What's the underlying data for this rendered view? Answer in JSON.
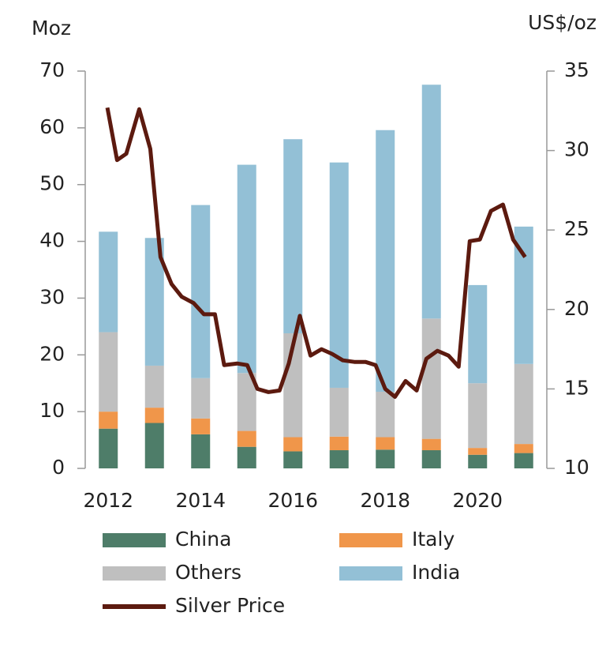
{
  "chart_data": {
    "type": "bar",
    "y_label": "Moz",
    "y2_label": "US$/oz",
    "x": [
      2012,
      2013,
      2014,
      2015,
      2016,
      2017,
      2018,
      2019,
      2020,
      2021
    ],
    "xlim": [
      2011.5,
      2021.5
    ],
    "xticks": [
      2012,
      2014,
      2016,
      2018,
      2020
    ],
    "ylim": [
      0,
      70
    ],
    "yticks": [
      0,
      10,
      20,
      30,
      40,
      50,
      60,
      70
    ],
    "y2lim": [
      10,
      35
    ],
    "y2ticks": [
      10,
      15,
      20,
      25,
      30,
      35
    ],
    "series": [
      {
        "name": "China",
        "color": "#4e7d69",
        "values": [
          7,
          8,
          6,
          3.8,
          3,
          3.2,
          3.3,
          3.2,
          2.4,
          2.7
        ]
      },
      {
        "name": "Italy",
        "color": "#f0964a",
        "values": [
          3,
          2.7,
          2.8,
          2.8,
          2.5,
          2.4,
          2.2,
          2,
          1.2,
          1.6
        ]
      },
      {
        "name": "Others",
        "color": "#bfbfbf",
        "values": [
          14,
          7.4,
          7.1,
          10.2,
          18.3,
          8.6,
          8,
          21.2,
          11.4,
          14.1
        ]
      },
      {
        "name": "India",
        "color": "#93c0d6",
        "values": [
          17.7,
          22.5,
          30.5,
          36.7,
          34.2,
          39.7,
          46.1,
          41.2,
          17.3,
          24.2
        ]
      },
      {
        "name": "Silver Price",
        "type": "line",
        "axis": "y2",
        "color": "#5c1a0f",
        "x": [
          2011.98,
          2012.19,
          2012.39,
          2012.67,
          2012.91,
          2013.13,
          2013.37,
          2013.59,
          2013.85,
          2014.07,
          2014.31,
          2014.51,
          2014.79,
          2015.01,
          2015.23,
          2015.47,
          2015.71,
          2015.91,
          2016.15,
          2016.38,
          2016.62,
          2016.85,
          2017.08,
          2017.33,
          2017.57,
          2017.79,
          2018.0,
          2018.21,
          2018.44,
          2018.68,
          2018.89,
          2019.13,
          2019.37,
          2019.59,
          2019.83,
          2020.05,
          2020.29,
          2020.55,
          2020.77,
          2021.03
        ],
        "values": [
          32.7,
          29.4,
          29.8,
          32.6,
          30.1,
          23.3,
          21.6,
          20.8,
          20.4,
          19.7,
          19.7,
          16.5,
          16.6,
          16.5,
          15,
          14.8,
          14.9,
          16.6,
          19.6,
          17.1,
          17.5,
          17.2,
          16.8,
          16.7,
          16.7,
          16.5,
          15,
          14.5,
          15.5,
          14.9,
          16.9,
          17.4,
          17.1,
          16.4,
          24.3,
          24.4,
          26.2,
          26.6,
          24.4,
          23.3
        ]
      }
    ]
  }
}
